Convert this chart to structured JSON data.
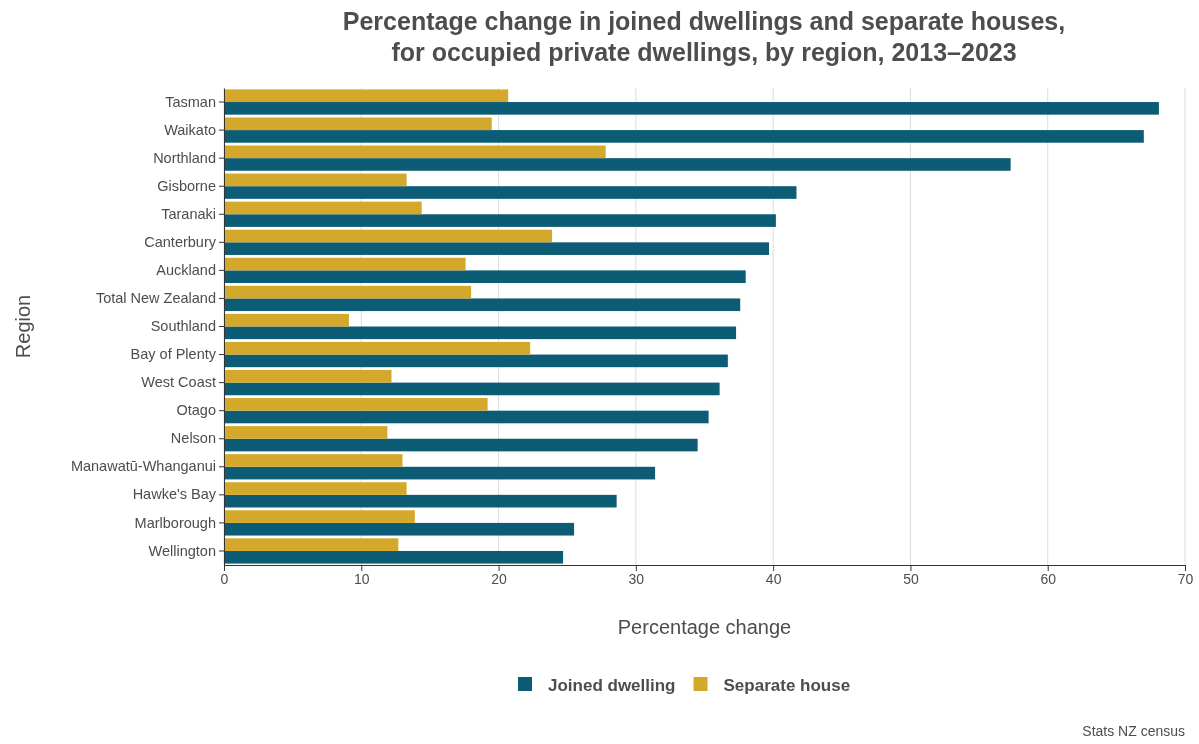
{
  "chart_data": {
    "type": "bar",
    "orientation": "horizontal",
    "title": "Percentage change in joined dwellings and separate houses,\nfor occupied private dwellings, by region, 2013–2023",
    "xlabel": "Percentage change",
    "ylabel": "Region",
    "categories": [
      "Tasman",
      "Waikato",
      "Northland",
      "Gisborne",
      "Taranaki",
      "Canterbury",
      "Auckland",
      "Total New Zealand",
      "Southland",
      "Bay of Plenty",
      "West Coast",
      "Otago",
      "Nelson",
      "Manawatū-Whanganui",
      "Hawke's Bay",
      "Marlborough",
      "Wellington"
    ],
    "series": [
      {
        "name": "Joined dwelling",
        "color": "#0d5c75",
        "values": [
          68.1,
          67.0,
          57.3,
          41.7,
          40.2,
          39.7,
          38.0,
          37.6,
          37.3,
          36.7,
          36.1,
          35.3,
          34.5,
          31.4,
          28.6,
          25.5,
          24.7
        ]
      },
      {
        "name": "Separate house",
        "color": "#d4a82a",
        "values": [
          20.7,
          19.5,
          27.8,
          13.3,
          14.4,
          23.9,
          17.6,
          18.0,
          9.1,
          22.3,
          12.2,
          19.2,
          11.9,
          13.0,
          13.3,
          13.9,
          12.7
        ]
      }
    ],
    "xlim": [
      0,
      70
    ],
    "xticks": [
      0,
      10,
      20,
      30,
      40,
      50,
      60,
      70
    ],
    "grid": "x",
    "legend": "bottom",
    "annotations": [
      "Stats NZ census"
    ]
  }
}
